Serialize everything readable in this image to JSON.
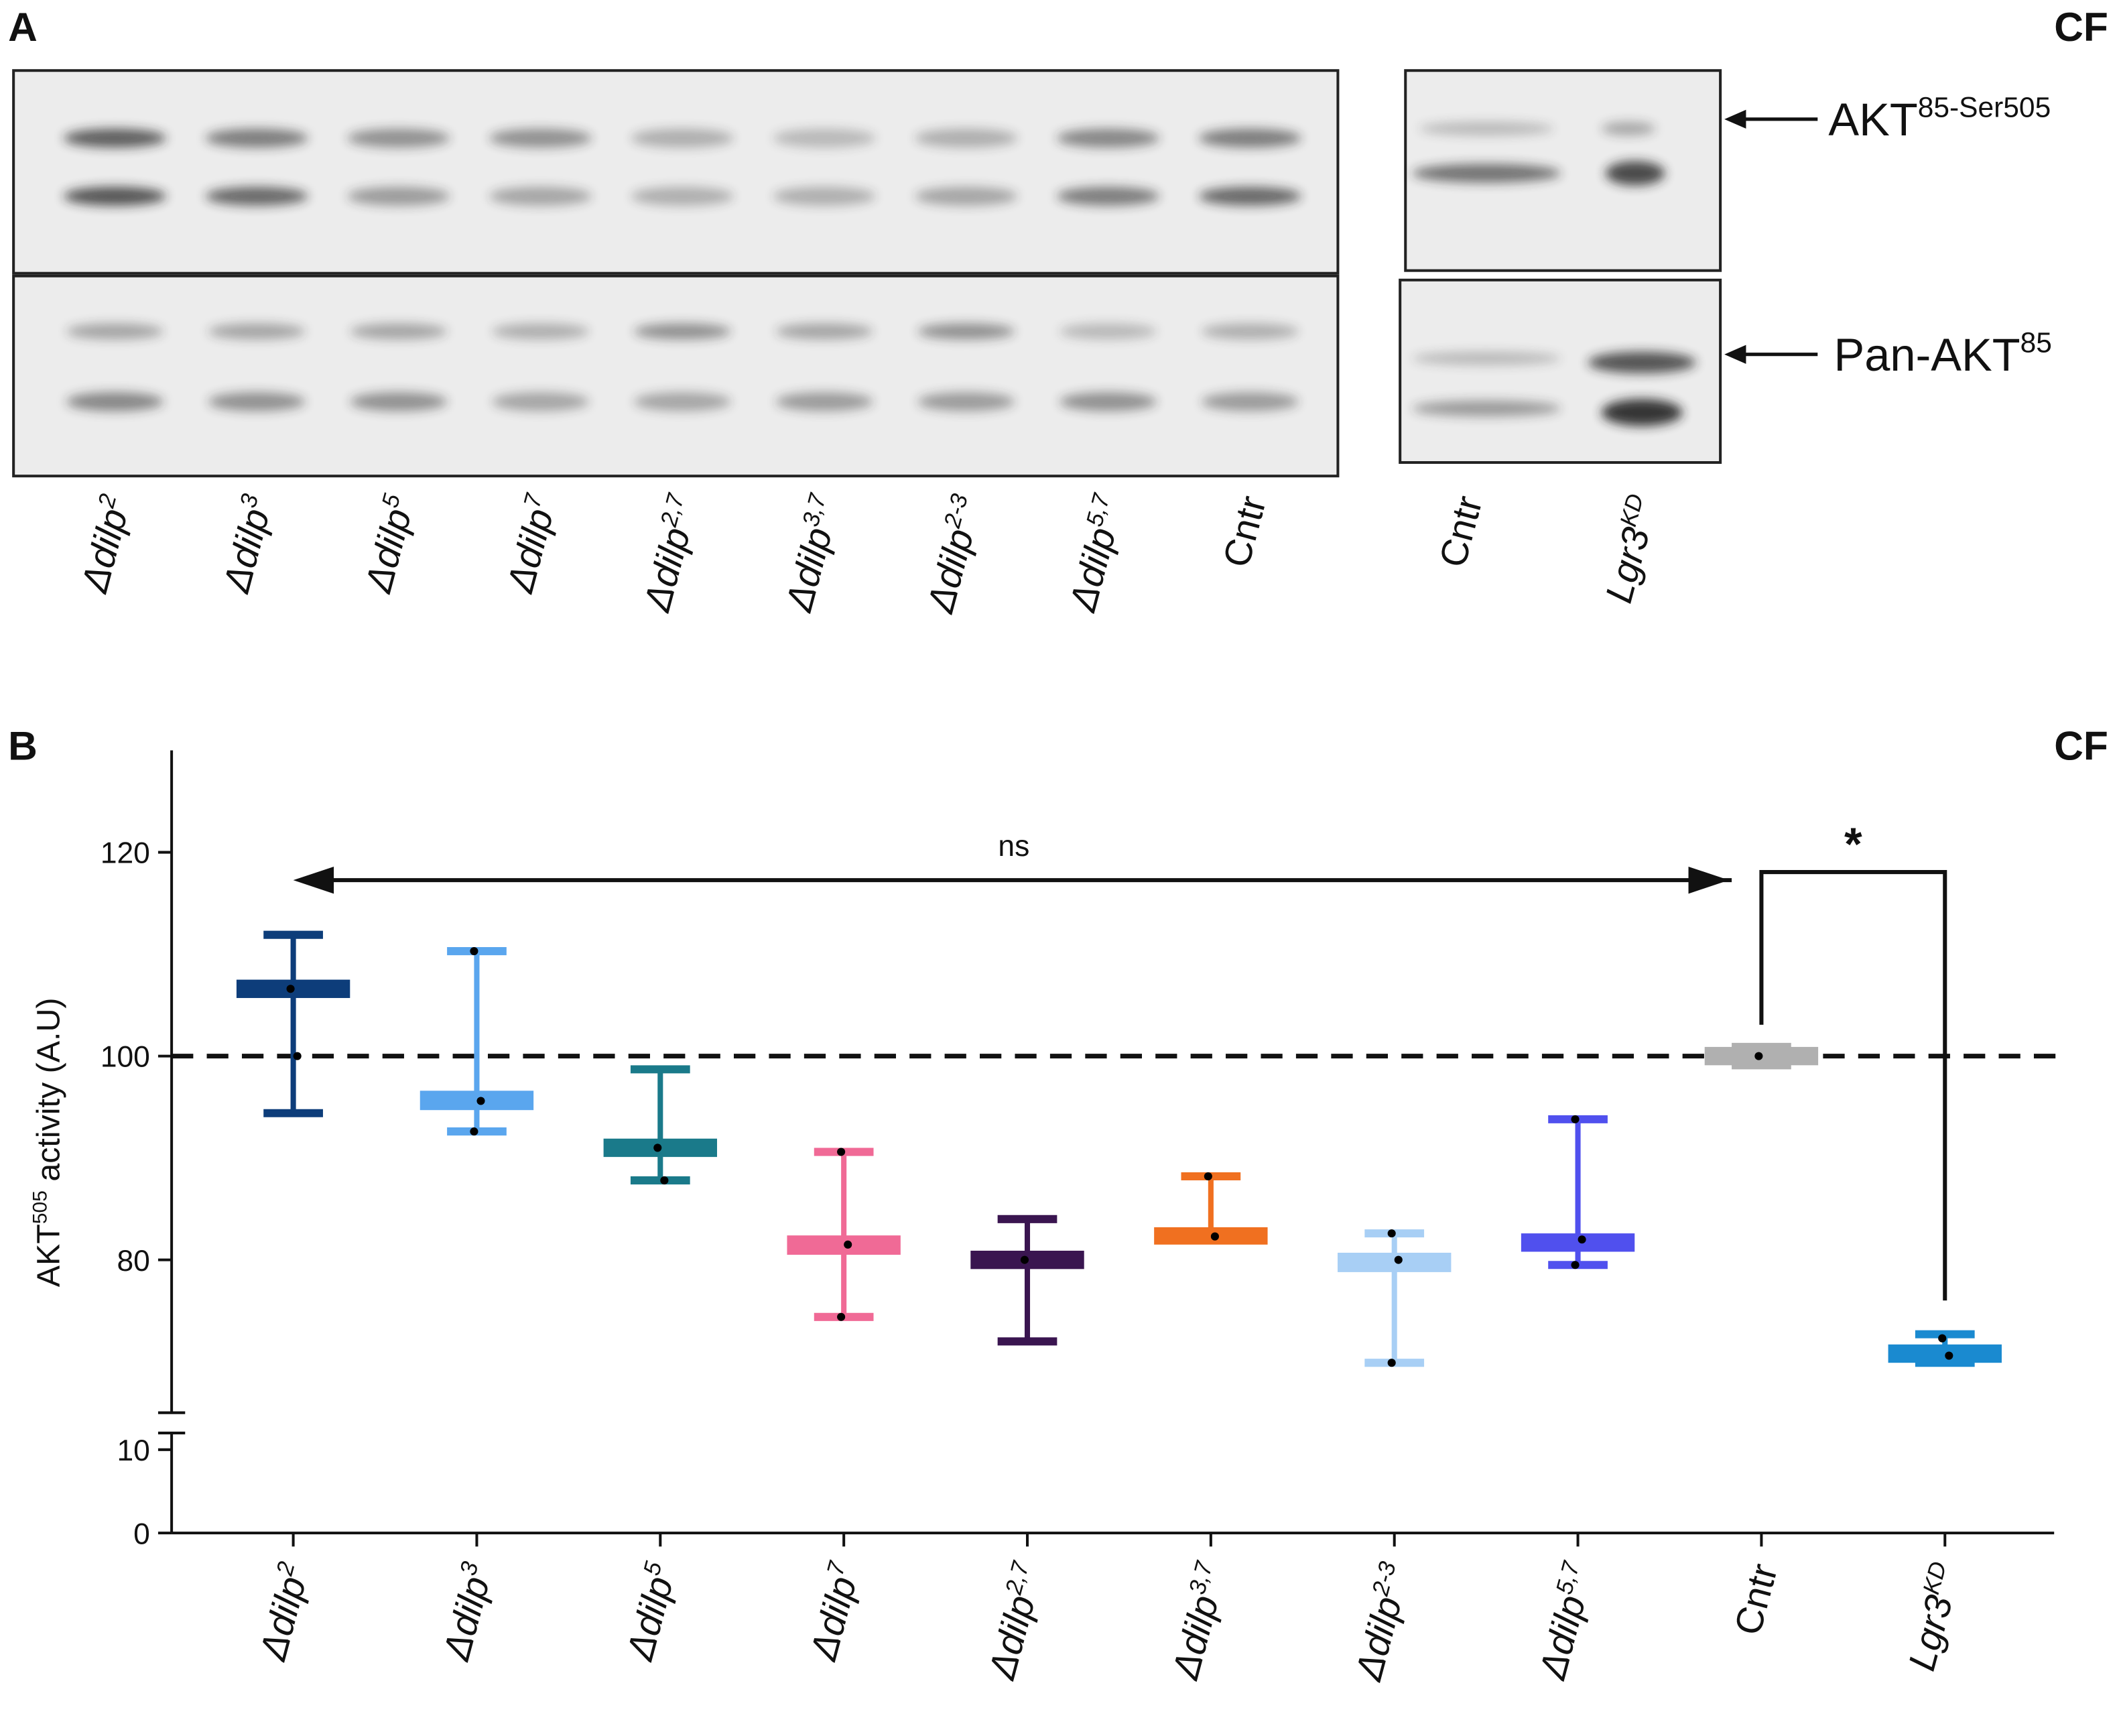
{
  "panel_a": {
    "label": "A",
    "tag": "CF",
    "lanes": [
      {
        "base": "Δdilp",
        "sup": "2",
        "italic": true
      },
      {
        "base": "Δdilp",
        "sup": "3",
        "italic": true
      },
      {
        "base": "Δdilp",
        "sup": "5",
        "italic": true
      },
      {
        "base": "Δdilp",
        "sup": "7",
        "italic": true
      },
      {
        "base": "Δdilp",
        "sup": "2,7",
        "italic": true
      },
      {
        "base": "Δdilp",
        "sup": "3,7",
        "italic": true
      },
      {
        "base": "Δdilp",
        "sup": "2-3",
        "italic": true
      },
      {
        "base": "Δdilp",
        "sup": "5,7",
        "italic": true
      },
      {
        "base": "Cntr",
        "italic": false
      }
    ],
    "lanes_right": [
      {
        "base": "Cntr",
        "italic": false
      },
      {
        "base": "Lgr3",
        "sup": "KD",
        "italic": true
      }
    ],
    "bands": [
      {
        "base": "AKT",
        "sup": "85-Ser505"
      },
      {
        "base": "Pan-AKT",
        "sup": "85"
      }
    ]
  },
  "chart_data": {
    "type": "box",
    "label": "B",
    "tag": "CF",
    "ylabel": {
      "base": "AKT",
      "sup": "505",
      "rest": " activity (A.U)"
    },
    "ylim": [
      0,
      130
    ],
    "axis_break": [
      12,
      65
    ],
    "yticks": [
      0,
      10,
      80,
      100,
      120
    ],
    "reference_line": 100,
    "annotations": [
      "ns",
      "*"
    ],
    "categories": [
      {
        "base": "Δdilp",
        "sup": "2",
        "italic": true
      },
      {
        "base": "Δdilp",
        "sup": "3",
        "italic": true
      },
      {
        "base": "Δdilp",
        "sup": "5",
        "italic": true
      },
      {
        "base": "Δdilp",
        "sup": "7",
        "italic": true
      },
      {
        "base": "Δdilp",
        "sup": "2,7",
        "italic": true
      },
      {
        "base": "Δdilp",
        "sup": "3,7",
        "italic": true
      },
      {
        "base": "Δdilp",
        "sup": "2-3",
        "italic": true
      },
      {
        "base": "Δdilp",
        "sup": "5,7",
        "italic": true
      },
      {
        "base": "Cntr",
        "italic": false
      },
      {
        "base": "Lgr3",
        "sup": "KD",
        "italic": true
      }
    ],
    "boxes": [
      {
        "color": "#0d3d7a",
        "max": 111.9,
        "min": 94.4,
        "box": [
          107.5,
          105.7
        ],
        "points": [
          106.6,
          100
        ]
      },
      {
        "color": "#5aa6ee",
        "max": 110.3,
        "min": 92.6,
        "box": [
          96.6,
          94.7
        ],
        "points": [
          110.3,
          95.6,
          92.6
        ]
      },
      {
        "color": "#1a7a8a",
        "max": 98.7,
        "min": 87.8,
        "box": [
          91.9,
          90.1
        ],
        "points": [
          91,
          87.8
        ]
      },
      {
        "color": "#f06a96",
        "max": 90.6,
        "min": 74.4,
        "box": [
          82.4,
          80.5
        ],
        "points": [
          90.6,
          81.5,
          74.4
        ]
      },
      {
        "color": "#3a1550",
        "max": 84,
        "min": 72,
        "box": [
          80.9,
          79.1
        ],
        "points": [
          80
        ]
      },
      {
        "color": "#f07020",
        "max": 88.2,
        "min": 82.1,
        "box": [
          83.2,
          81.5
        ],
        "points": [
          88.2,
          82.3
        ]
      },
      {
        "color": "#a8cff5",
        "max": 82.6,
        "min": 69.9,
        "box": [
          80.7,
          78.8
        ],
        "points": [
          82.6,
          80,
          69.9
        ]
      },
      {
        "color": "#5050ee",
        "max": 93.8,
        "min": 79.5,
        "box": [
          82.6,
          80.8
        ],
        "points": [
          93.8,
          82,
          79.5
        ]
      },
      {
        "color": "#b0b0b0",
        "max": 100.9,
        "min": 99.1,
        "box": [
          100.9,
          99.1
        ],
        "points": [
          100
        ]
      },
      {
        "color": "#1a8ad0",
        "max": 72.7,
        "min": 69.9,
        "box": [
          71.7,
          69.9
        ],
        "points": [
          72.3,
          70.6
        ]
      }
    ]
  }
}
